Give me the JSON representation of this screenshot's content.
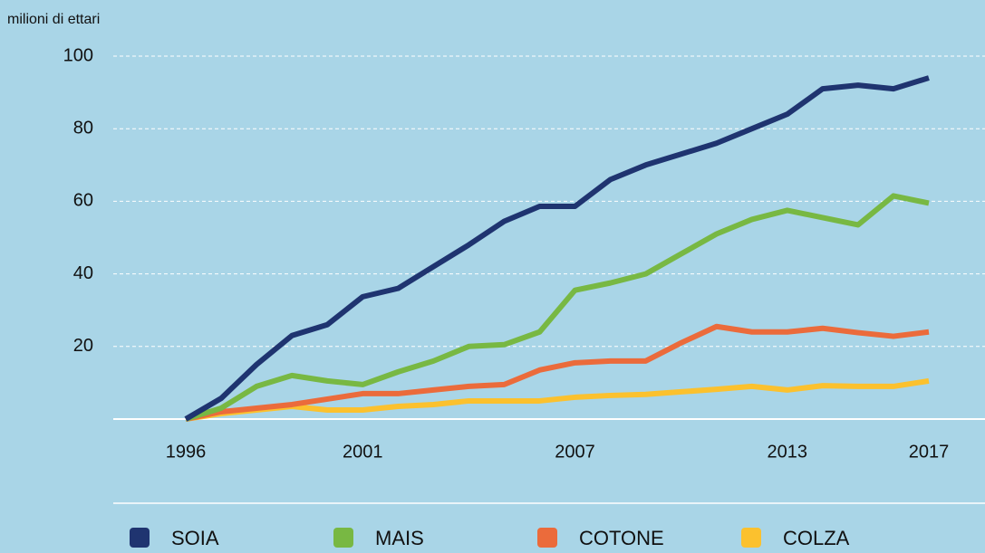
{
  "chart_data": {
    "type": "line",
    "y_axis_label": "milioni di ettari",
    "x": [
      1996,
      1997,
      1998,
      1999,
      2000,
      2001,
      2002,
      2003,
      2004,
      2005,
      2006,
      2007,
      2008,
      2009,
      2010,
      2011,
      2012,
      2013,
      2014,
      2015,
      2016,
      2017
    ],
    "series": [
      {
        "name": "SOIA",
        "color": "#1f3470",
        "values": [
          0,
          5.7,
          15,
          23,
          26,
          33.7,
          36,
          42,
          48,
          54.5,
          58.6,
          58.6,
          66,
          70,
          73,
          76,
          80,
          84,
          91,
          92,
          91,
          94
        ]
      },
      {
        "name": "MAIS",
        "color": "#78b843",
        "values": [
          0,
          3,
          9,
          12,
          10.5,
          9.5,
          13,
          16,
          20,
          20.5,
          24,
          35.5,
          37.5,
          40,
          45.5,
          51,
          55,
          57.5,
          55.5,
          53.5,
          61.5,
          59.5
        ]
      },
      {
        "name": "COTONE",
        "color": "#eb6b3b",
        "values": [
          0,
          2,
          3,
          4,
          5.5,
          7,
          7,
          8,
          9,
          9.5,
          13.5,
          15.5,
          16,
          16,
          21,
          25.5,
          24,
          24,
          25,
          23.8,
          22.8,
          24
        ]
      },
      {
        "name": "COLZA",
        "color": "#fbc12e",
        "values": [
          0,
          1.5,
          2.5,
          3.5,
          2.5,
          2.5,
          3.5,
          4,
          5,
          5,
          5,
          6,
          6.5,
          6.8,
          7.5,
          8.2,
          9,
          8,
          9.2,
          9,
          9,
          10.5
        ]
      }
    ],
    "xlim": [
      1996,
      2017
    ],
    "xticks": [
      1996,
      2001,
      2007,
      2013,
      2017
    ],
    "ylim": [
      0,
      100
    ],
    "yticks": [
      20,
      40,
      60,
      80,
      100
    ],
    "grid": true
  }
}
